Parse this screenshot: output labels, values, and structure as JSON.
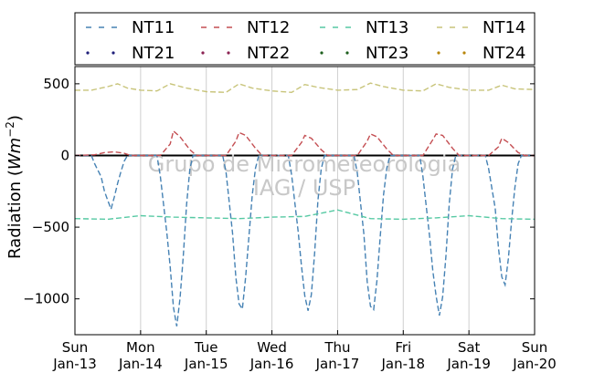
{
  "chart_data": {
    "type": "line",
    "title": "",
    "xlabel": "",
    "ylabel": "Radiation (Wm⁻²)",
    "ylabel_parts": {
      "pre": "Radiation (",
      "unit": "Wm",
      "exp": "−2",
      "post": ")"
    },
    "ylim": [
      -1250,
      620
    ],
    "yticks": [
      500,
      0,
      -500,
      -1000
    ],
    "ytick_labels": [
      "500",
      "0",
      "−500",
      "−1000"
    ],
    "xlim": [
      0,
      7
    ],
    "xticks": [
      0,
      1,
      2,
      3,
      4,
      5,
      6,
      7
    ],
    "xtick_labels": [
      [
        "Sun",
        "Jan-13"
      ],
      [
        "Mon",
        "Jan-14"
      ],
      [
        "Tue",
        "Jan-15"
      ],
      [
        "Wed",
        "Jan-16"
      ],
      [
        "Thu",
        "Jan-17"
      ],
      [
        "Fri",
        "Jan-18"
      ],
      [
        "Sat",
        "Jan-19"
      ],
      [
        "Sun",
        "Jan-20"
      ]
    ],
    "grid": "vertical",
    "legend_position": "top",
    "watermark": [
      "Grupo de Micrometeorologia",
      "IAG / USP"
    ],
    "series": [
      {
        "name": "NT11",
        "color": "#4682b4",
        "style": "dashed",
        "day_peaks": [
          -400,
          -1230,
          -1130,
          -1130,
          -1120,
          -1180,
          -930
        ],
        "x": [
          0,
          0.25,
          0.3,
          0.4,
          0.45,
          0.5,
          0.55,
          0.6,
          0.65,
          0.7,
          0.75,
          0.8,
          1.25,
          1.3,
          1.4,
          1.45,
          1.5,
          1.55,
          1.6,
          1.65,
          1.7,
          1.75,
          1.8,
          2.25,
          2.3,
          2.4,
          2.45,
          2.5,
          2.55,
          2.6,
          2.65,
          2.7,
          2.75,
          2.8,
          3.25,
          3.3,
          3.4,
          3.45,
          3.5,
          3.55,
          3.6,
          3.65,
          3.7,
          3.75,
          3.8,
          4.25,
          4.3,
          4.4,
          4.45,
          4.5,
          4.55,
          4.6,
          4.65,
          4.7,
          4.75,
          4.8,
          5.25,
          5.3,
          5.4,
          5.45,
          5.5,
          5.55,
          5.6,
          5.65,
          5.7,
          5.75,
          5.8,
          6.25,
          6.3,
          6.4,
          6.45,
          6.5,
          6.55,
          6.6,
          6.65,
          6.7,
          6.75,
          6.8,
          7
        ],
        "y": [
          0,
          0,
          -60,
          -150,
          -250,
          -320,
          -400,
          -330,
          -220,
          -120,
          -40,
          0,
          0,
          -150,
          -600,
          -900,
          -1150,
          -1230,
          -1000,
          -700,
          -350,
          -100,
          0,
          0,
          -120,
          -550,
          -850,
          -1050,
          -1130,
          -950,
          -650,
          -300,
          -90,
          0,
          0,
          -140,
          -580,
          -900,
          -1080,
          -1130,
          -980,
          -680,
          -320,
          -100,
          0,
          0,
          -130,
          -560,
          -880,
          -1060,
          -1120,
          -960,
          -660,
          -300,
          -90,
          0,
          0,
          -150,
          -600,
          -920,
          -1100,
          -1180,
          -1000,
          -700,
          -340,
          -100,
          0,
          0,
          -100,
          -380,
          -650,
          -850,
          -930,
          -780,
          -520,
          -250,
          -60,
          0,
          0
        ]
      },
      {
        "name": "NT12",
        "color": "#c44e52",
        "style": "dashed",
        "x": [
          0,
          0.3,
          0.45,
          0.6,
          0.75,
          0.85,
          1.3,
          1.45,
          1.5,
          1.6,
          1.75,
          1.85,
          2.3,
          2.45,
          2.5,
          2.6,
          2.75,
          2.85,
          3.3,
          3.45,
          3.5,
          3.6,
          3.75,
          3.85,
          4.3,
          4.45,
          4.5,
          4.6,
          4.75,
          4.85,
          5.3,
          5.45,
          5.5,
          5.6,
          5.75,
          5.85,
          6.3,
          6.45,
          6.5,
          6.6,
          6.75,
          6.85,
          7
        ],
        "y": [
          0,
          5,
          20,
          25,
          15,
          0,
          0,
          80,
          170,
          130,
          40,
          0,
          0,
          100,
          160,
          140,
          50,
          0,
          0,
          90,
          140,
          120,
          40,
          0,
          0,
          100,
          150,
          130,
          45,
          0,
          0,
          110,
          150,
          140,
          50,
          0,
          0,
          60,
          120,
          90,
          20,
          0,
          0
        ]
      },
      {
        "name": "NT13",
        "color": "#56c9a3",
        "style": "dashed",
        "x": [
          0,
          0.5,
          1,
          1.5,
          2,
          2.5,
          3,
          3.5,
          4,
          4.5,
          5,
          5.5,
          6,
          6.5,
          7
        ],
        "y": [
          -440,
          -445,
          -420,
          -430,
          -435,
          -440,
          -430,
          -425,
          -380,
          -440,
          -445,
          -435,
          -420,
          -440,
          -445
        ]
      },
      {
        "name": "NT14",
        "color": "#c8c47a",
        "style": "dashed",
        "x": [
          0,
          0.25,
          0.5,
          0.65,
          0.8,
          1,
          1.25,
          1.45,
          1.7,
          2,
          2.3,
          2.5,
          2.7,
          3,
          3.3,
          3.5,
          3.7,
          4,
          4.3,
          4.5,
          4.7,
          5,
          5.3,
          5.5,
          5.7,
          6,
          6.3,
          6.5,
          6.7,
          7
        ],
        "y": [
          455,
          455,
          480,
          500,
          470,
          455,
          450,
          500,
          470,
          445,
          440,
          500,
          470,
          450,
          440,
          495,
          475,
          455,
          460,
          505,
          480,
          455,
          450,
          500,
          475,
          455,
          455,
          490,
          465,
          460
        ]
      },
      {
        "name": "NT21",
        "color": "#1f1f7a",
        "style": "dotted",
        "x": [],
        "y": []
      },
      {
        "name": "NT22",
        "color": "#8b2252",
        "style": "dotted",
        "x": [],
        "y": []
      },
      {
        "name": "NT23",
        "color": "#1e5f1e",
        "style": "dotted",
        "x": [],
        "y": []
      },
      {
        "name": "NT24",
        "color": "#b8860b",
        "style": "dotted",
        "x": [],
        "y": []
      }
    ]
  }
}
